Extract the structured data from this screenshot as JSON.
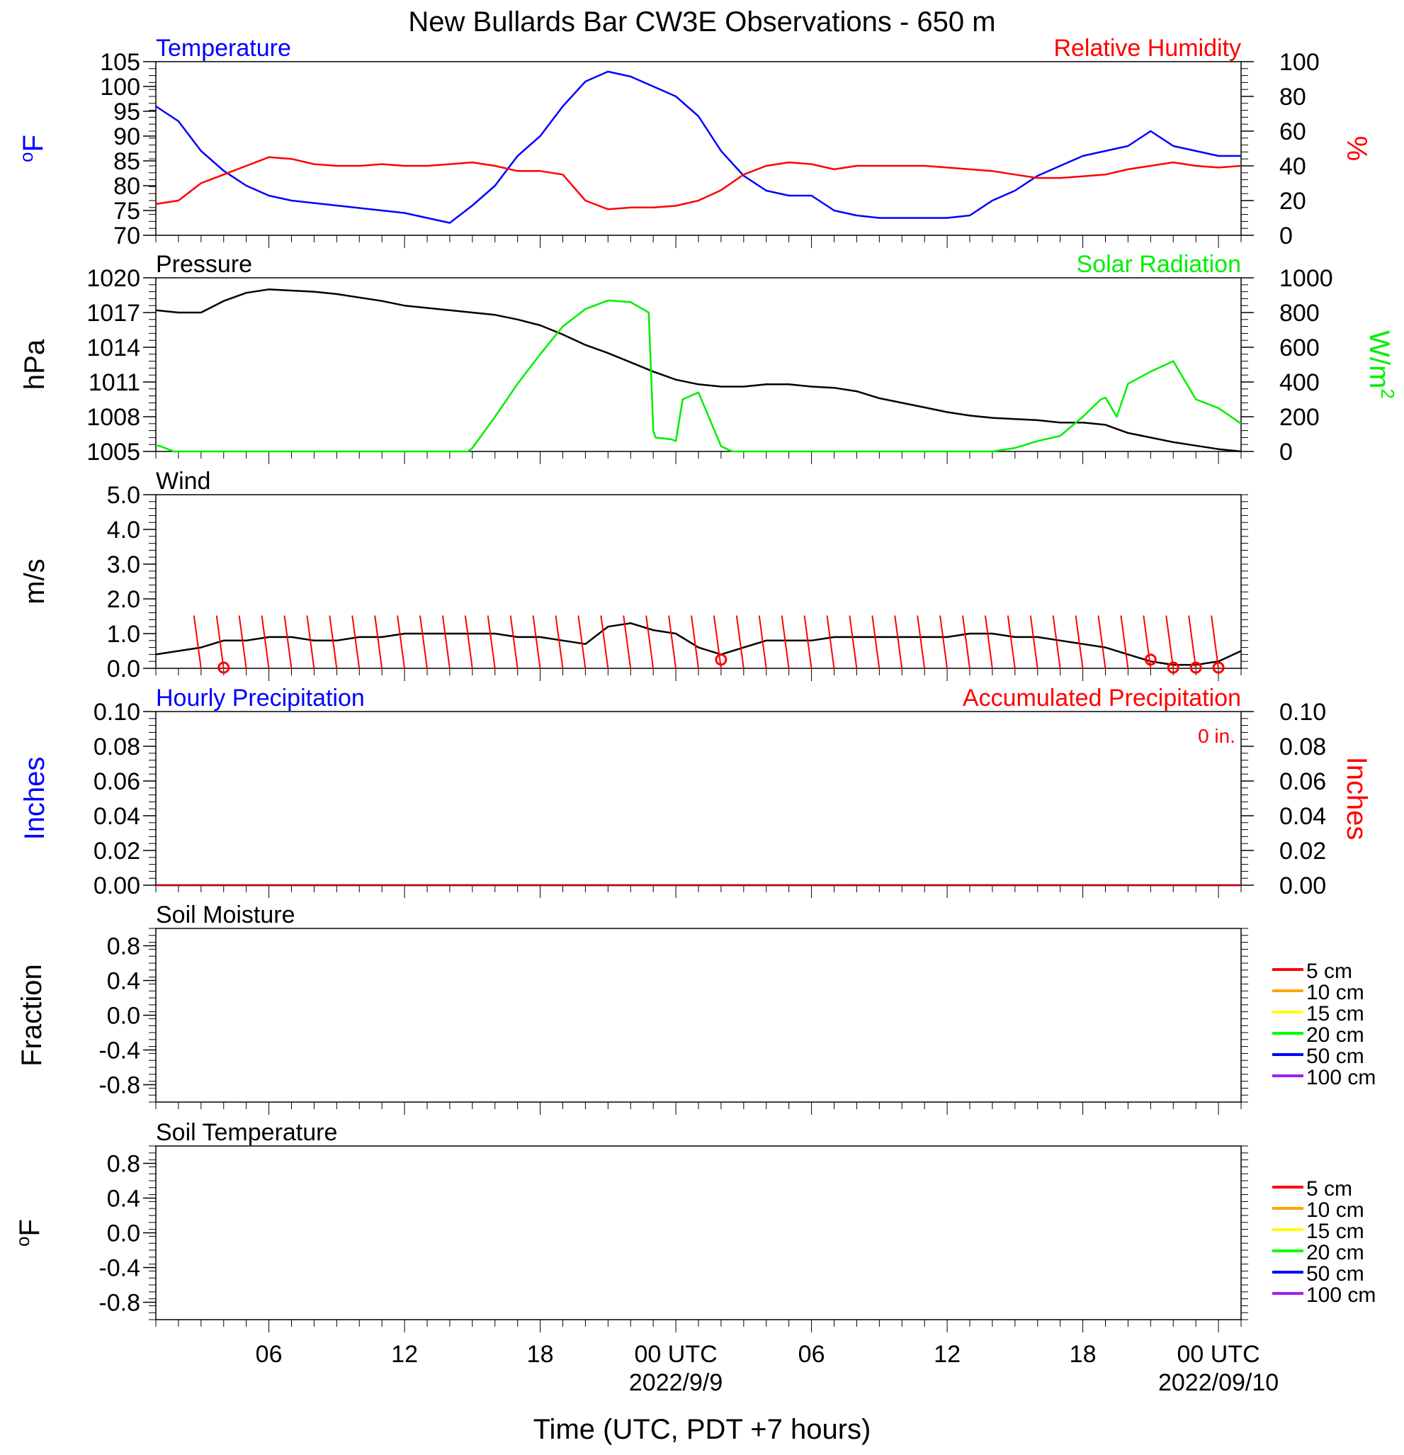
{
  "title": "New Bullards Bar CW3E Observations - 650 m",
  "x_axis": {
    "label": "Time (UTC, PDT +7 hours)",
    "ticks": [
      "06",
      "12",
      "18",
      "00 UTC",
      "06",
      "12",
      "18",
      "00 UTC"
    ],
    "dates": [
      "2022/9/9",
      "2022/09/10"
    ]
  },
  "colors": {
    "temperature": "#0000ff",
    "humidity": "#ff0000",
    "pressure": "#000000",
    "solar": "#00ee00",
    "wind": "#000000",
    "barb": "#ff0000",
    "hourly_precip": "#0000ff",
    "accum_precip": "#cc0000"
  },
  "chart_data": [
    {
      "type": "line",
      "panel": "temperature-humidity",
      "left_title": "Temperature",
      "right_title": "Relative Humidity",
      "ylabel": "oF",
      "ylabel_right": "%",
      "ylim": [
        70,
        105
      ],
      "ylim_right": [
        0,
        100
      ],
      "yticks": [
        "105",
        "100",
        "95",
        "90",
        "85",
        "80",
        "75",
        "70"
      ],
      "yticks_right": [
        "100",
        "80",
        "60",
        "40",
        "20",
        "0"
      ],
      "xlim_hours": [
        1,
        49
      ],
      "series": [
        {
          "name": "Temperature",
          "axis": "left",
          "x": [
            1,
            2,
            3,
            4,
            5,
            6,
            7,
            8,
            9,
            10,
            11,
            12,
            13,
            14,
            15,
            16,
            17,
            18,
            19,
            20,
            21,
            22,
            23,
            24,
            25,
            26,
            27,
            28,
            29,
            30,
            31,
            32,
            33,
            34,
            35,
            36,
            37,
            38,
            39,
            40,
            41,
            42,
            43,
            44,
            45,
            46,
            47,
            48,
            49
          ],
          "y": [
            96,
            93,
            87,
            83,
            80,
            78,
            77,
            76.5,
            76,
            75.5,
            75,
            74.5,
            73.5,
            72.5,
            76,
            80,
            86,
            90,
            96,
            101,
            103,
            102,
            100,
            98,
            94,
            87,
            82,
            79,
            78,
            78,
            75,
            74,
            73.5,
            73.5,
            73.5,
            73.5,
            74,
            77,
            79,
            82,
            84,
            86,
            87,
            88,
            91,
            88,
            87,
            86,
            86
          ]
        },
        {
          "name": "Relative Humidity",
          "axis": "right",
          "x": [
            1,
            2,
            3,
            4,
            5,
            6,
            7,
            8,
            9,
            10,
            11,
            12,
            13,
            14,
            15,
            16,
            17,
            18,
            19,
            20,
            21,
            22,
            23,
            24,
            25,
            26,
            27,
            28,
            29,
            30,
            31,
            32,
            33,
            34,
            35,
            36,
            37,
            38,
            39,
            40,
            41,
            42,
            43,
            44,
            45,
            46,
            47,
            48,
            49
          ],
          "y": [
            18,
            20,
            30,
            35,
            40,
            45,
            44,
            41,
            40,
            40,
            41,
            40,
            40,
            41,
            42,
            40,
            37,
            37,
            35,
            20,
            15,
            16,
            16,
            17,
            20,
            26,
            35,
            40,
            42,
            41,
            38,
            40,
            40,
            40,
            40,
            39,
            38,
            37,
            35,
            33,
            33,
            34,
            35,
            38,
            40,
            42,
            40,
            39,
            40
          ]
        }
      ]
    },
    {
      "type": "line",
      "panel": "pressure-solar",
      "left_title": "Pressure",
      "right_title": "Solar Radiation",
      "ylabel": "hPa",
      "ylabel_right": "W/m",
      "ylabel_right_sup": "2",
      "ylim": [
        1005,
        1020
      ],
      "ylim_right": [
        0,
        1000
      ],
      "yticks": [
        "1020",
        "1017",
        "1014",
        "1011",
        "1008",
        "1005"
      ],
      "yticks_right": [
        "1000",
        "800",
        "600",
        "400",
        "200",
        "0"
      ],
      "xlim_hours": [
        1,
        49
      ],
      "series": [
        {
          "name": "Pressure",
          "axis": "left",
          "x": [
            1,
            2,
            3,
            4,
            5,
            6,
            7,
            8,
            9,
            10,
            11,
            12,
            13,
            14,
            15,
            16,
            17,
            18,
            19,
            20,
            21,
            22,
            23,
            24,
            25,
            26,
            27,
            28,
            29,
            30,
            31,
            32,
            33,
            34,
            35,
            36,
            37,
            38,
            39,
            40,
            41,
            42,
            43,
            44,
            45,
            46,
            47,
            48,
            49
          ],
          "y": [
            1017.2,
            1017,
            1017,
            1018,
            1018.7,
            1019,
            1018.9,
            1018.8,
            1018.6,
            1018.3,
            1018,
            1017.6,
            1017.4,
            1017.2,
            1017,
            1016.8,
            1016.4,
            1015.9,
            1015.1,
            1014.2,
            1013.5,
            1012.7,
            1011.9,
            1011.2,
            1010.8,
            1010.6,
            1010.6,
            1010.8,
            1010.8,
            1010.6,
            1010.5,
            1010.2,
            1009.6,
            1009.2,
            1008.8,
            1008.4,
            1008.1,
            1007.9,
            1007.8,
            1007.7,
            1007.5,
            1007.5,
            1007.3,
            1006.6,
            1006.2,
            1005.8,
            1005.5,
            1005.2,
            1005
          ]
        },
        {
          "name": "Solar Radiation",
          "axis": "right",
          "x": [
            1,
            1.2,
            1.8,
            14.8,
            15,
            16,
            17,
            18,
            19,
            20,
            21,
            22,
            22.8,
            23,
            23.1,
            23.8,
            24,
            24.3,
            25,
            26,
            26.5,
            30,
            38,
            39,
            40,
            41,
            42,
            42.8,
            43,
            43.5,
            44,
            45,
            46,
            47,
            48,
            49
          ],
          "y": [
            35,
            30,
            0,
            0,
            20,
            200,
            390,
            560,
            720,
            820,
            870,
            860,
            800,
            120,
            80,
            70,
            60,
            300,
            340,
            30,
            0,
            0,
            0,
            20,
            60,
            90,
            200,
            300,
            310,
            200,
            390,
            460,
            520,
            300,
            250,
            160
          ]
        }
      ]
    },
    {
      "type": "line",
      "panel": "wind",
      "left_title": "Wind",
      "ylabel": "m/s",
      "ylim": [
        0,
        5
      ],
      "yticks": [
        "5.0",
        "4.0",
        "3.0",
        "2.0",
        "1.0",
        "0.0"
      ],
      "xlim_hours": [
        1,
        49
      ],
      "series": [
        {
          "name": "Wind speed",
          "x": [
            1,
            2,
            3,
            4,
            5,
            6,
            7,
            8,
            9,
            10,
            11,
            12,
            13,
            14,
            15,
            16,
            17,
            18,
            19,
            20,
            21,
            22,
            23,
            24,
            25,
            26,
            27,
            28,
            29,
            30,
            31,
            32,
            33,
            34,
            35,
            36,
            37,
            38,
            39,
            40,
            41,
            42,
            43,
            44,
            45,
            46,
            47,
            48,
            49
          ],
          "y": [
            0.4,
            0.5,
            0.6,
            0.8,
            0.8,
            0.9,
            0.9,
            0.8,
            0.8,
            0.9,
            0.9,
            1.0,
            1.0,
            1.0,
            1.0,
            1.0,
            0.9,
            0.9,
            0.8,
            0.7,
            1.2,
            1.3,
            1.1,
            1.0,
            0.6,
            0.4,
            0.6,
            0.8,
            0.8,
            0.8,
            0.9,
            0.9,
            0.9,
            0.9,
            0.9,
            0.9,
            1.0,
            1.0,
            0.9,
            0.9,
            0.8,
            0.7,
            0.6,
            0.4,
            0.2,
            0.1,
            0.1,
            0.2,
            0.5
          ]
        }
      ],
      "barbs_hours": [
        3,
        4,
        5,
        6,
        7,
        8,
        9,
        10,
        11,
        12,
        13,
        14,
        15,
        16,
        17,
        18,
        19,
        20,
        21,
        22,
        23,
        24,
        25,
        26,
        27,
        28,
        29,
        30,
        31,
        32,
        33,
        34,
        35,
        36,
        37,
        38,
        39,
        40,
        41,
        42,
        43,
        44,
        45,
        46,
        47,
        48
      ]
    },
    {
      "type": "line",
      "panel": "precipitation",
      "left_title": "Hourly Precipitation",
      "right_title": "Accumulated Precipitation",
      "annotation": "0 in.",
      "ylabel": "Inches",
      "ylabel_right": "Inches",
      "ylim": [
        0,
        0.1
      ],
      "yticks": [
        "0.10",
        "0.08",
        "0.06",
        "0.04",
        "0.02",
        "0.00"
      ],
      "yticks_right": [
        "0.10",
        "0.08",
        "0.06",
        "0.04",
        "0.02",
        "0.00"
      ],
      "series": [
        {
          "name": "Hourly Precipitation",
          "x": [
            1,
            49
          ],
          "y": [
            0,
            0
          ]
        },
        {
          "name": "Accumulated Precipitation",
          "x": [
            1,
            49
          ],
          "y": [
            0,
            0
          ]
        }
      ]
    },
    {
      "type": "line",
      "panel": "soil-moisture",
      "left_title": "Soil Moisture",
      "ylabel": "Fraction",
      "ylim": [
        -1,
        1
      ],
      "yticks": [
        "0.8",
        "0.4",
        "0.0",
        "-0.4",
        "-0.8"
      ],
      "legend": [
        "5 cm",
        "10 cm",
        "15 cm",
        "20 cm",
        "50 cm",
        "100 cm"
      ],
      "legend_colors": [
        "#ff0000",
        "#ffa500",
        "#ffff00",
        "#00ff00",
        "#0000ff",
        "#a020f0"
      ],
      "series": []
    },
    {
      "type": "line",
      "panel": "soil-temperature",
      "left_title": "Soil Temperature",
      "ylabel": "oF",
      "ylim": [
        -1,
        1
      ],
      "yticks": [
        "0.8",
        "0.4",
        "0.0",
        "-0.4",
        "-0.8"
      ],
      "legend": [
        "5 cm",
        "10 cm",
        "15 cm",
        "20 cm",
        "50 cm",
        "100 cm"
      ],
      "legend_colors": [
        "#ff0000",
        "#ffa500",
        "#ffff00",
        "#00ff00",
        "#0000ff",
        "#a020f0"
      ],
      "series": []
    }
  ]
}
